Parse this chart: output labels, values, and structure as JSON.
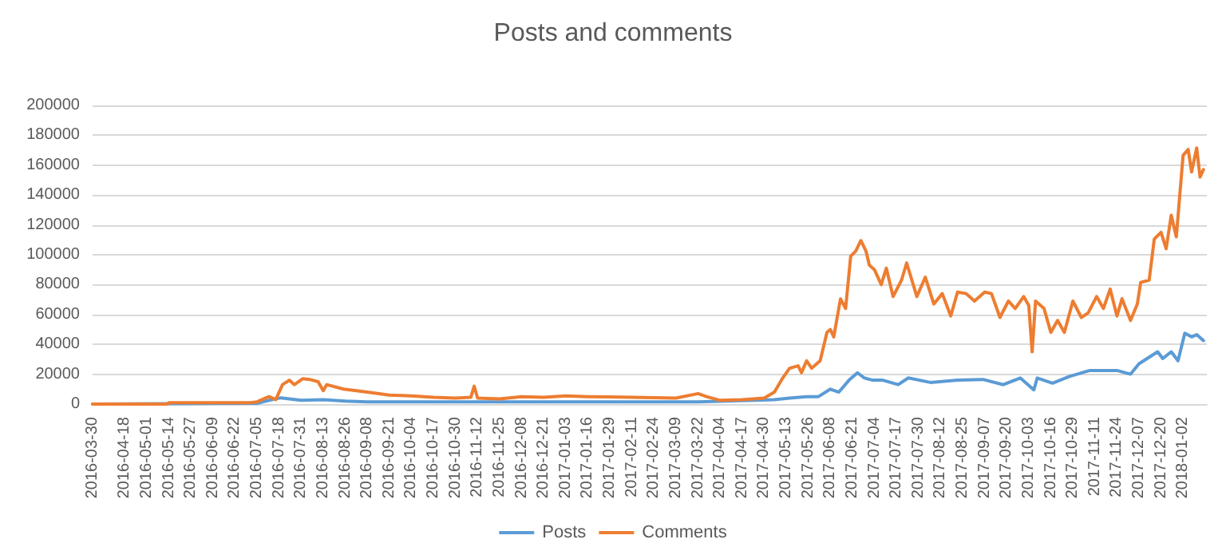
{
  "chart_data": {
    "type": "line",
    "title": "Posts and comments",
    "xlim": [
      "2016-03-30",
      "2018-01-16"
    ],
    "xticks": [
      "2016-03-30",
      "2016-04-18",
      "2016-05-01",
      "2016-05-14",
      "2016-05-27",
      "2016-06-09",
      "2016-06-22",
      "2016-07-05",
      "2016-07-18",
      "2016-07-31",
      "2016-08-13",
      "2016-08-26",
      "2016-09-08",
      "2016-09-21",
      "2016-10-04",
      "2016-10-17",
      "2016-10-30",
      "2016-11-12",
      "2016-11-25",
      "2016-12-08",
      "2016-12-21",
      "2017-01-03",
      "2017-01-16",
      "2017-01-29",
      "2017-02-11",
      "2017-02-24",
      "2017-03-09",
      "2017-03-22",
      "2017-04-04",
      "2017-04-17",
      "2017-04-30",
      "2017-05-13",
      "2017-05-26",
      "2017-06-08",
      "2017-06-21",
      "2017-07-04",
      "2017-07-17",
      "2017-07-30",
      "2017-08-12",
      "2017-08-25",
      "2017-09-07",
      "2017-09-20",
      "2017-10-03",
      "2017-10-16",
      "2017-10-29",
      "2017-11-11",
      "2017-11-24",
      "2017-12-07",
      "2017-12-20",
      "2018-01-02"
    ],
    "ylim": [
      0,
      200000
    ],
    "yticks": [
      0,
      20000,
      40000,
      60000,
      80000,
      100000,
      120000,
      140000,
      160000,
      180000,
      200000
    ],
    "grid": "y",
    "legend": "bottom",
    "marker": "none",
    "line_style": "solid",
    "series": [
      {
        "name": "Posts",
        "color": "#5b9bd5",
        "x": [
          "2016-03-30",
          "2016-07-05",
          "2016-07-12",
          "2016-07-19",
          "2016-07-31",
          "2016-08-13",
          "2016-08-26",
          "2016-09-08",
          "2016-11-12",
          "2017-01-03",
          "2017-03-22",
          "2017-05-06",
          "2017-05-15",
          "2017-05-25",
          "2017-06-01",
          "2017-06-08",
          "2017-06-13",
          "2017-06-19",
          "2017-06-24",
          "2017-06-28",
          "2017-07-03",
          "2017-07-09",
          "2017-07-18",
          "2017-07-24",
          "2017-08-06",
          "2017-08-22",
          "2017-09-06",
          "2017-09-18",
          "2017-09-28",
          "2017-10-06",
          "2017-10-08",
          "2017-10-17",
          "2017-10-27",
          "2017-11-08",
          "2017-11-24",
          "2017-12-02",
          "2017-12-07",
          "2017-12-18",
          "2017-12-21",
          "2017-12-26",
          "2017-12-30",
          "2018-01-03",
          "2018-01-07",
          "2018-01-10",
          "2018-01-14"
        ],
        "values": [
          0,
          500,
          2500,
          4200,
          2500,
          3000,
          2000,
          1500,
          1500,
          1500,
          1500,
          3000,
          4000,
          5000,
          5000,
          10000,
          8000,
          16000,
          21000,
          17500,
          16000,
          16000,
          13000,
          17500,
          14500,
          16000,
          16500,
          13000,
          17500,
          9500,
          17500,
          14000,
          18500,
          22500,
          22500,
          20000,
          27000,
          35000,
          30500,
          35000,
          29000,
          47500,
          45000,
          46500,
          42500
        ]
      },
      {
        "name": "Comments",
        "color": "#ed7d31",
        "x": [
          "2016-03-30",
          "2016-05-13",
          "2016-05-14",
          "2016-07-01",
          "2016-07-05",
          "2016-07-12",
          "2016-07-16",
          "2016-07-20",
          "2016-07-24",
          "2016-07-27",
          "2016-08-01",
          "2016-08-05",
          "2016-08-10",
          "2016-08-13",
          "2016-08-15",
          "2016-08-25",
          "2016-09-08",
          "2016-09-21",
          "2016-10-04",
          "2016-10-17",
          "2016-10-30",
          "2016-11-08",
          "2016-11-10",
          "2016-11-12",
          "2016-11-25",
          "2016-12-08",
          "2016-12-21",
          "2017-01-03",
          "2017-01-16",
          "2017-02-11",
          "2017-03-09",
          "2017-03-22",
          "2017-03-27",
          "2017-04-04",
          "2017-04-17",
          "2017-04-30",
          "2017-05-06",
          "2017-05-11",
          "2017-05-15",
          "2017-05-20",
          "2017-05-22",
          "2017-05-25",
          "2017-05-28",
          "2017-06-02",
          "2017-06-06",
          "2017-06-08",
          "2017-06-10",
          "2017-06-14",
          "2017-06-17",
          "2017-06-20",
          "2017-06-23",
          "2017-06-26",
          "2017-06-29",
          "2017-07-01",
          "2017-07-04",
          "2017-07-08",
          "2017-07-11",
          "2017-07-15",
          "2017-07-20",
          "2017-07-23",
          "2017-07-29",
          "2017-08-03",
          "2017-08-08",
          "2017-08-13",
          "2017-08-18",
          "2017-08-22",
          "2017-08-27",
          "2017-09-01",
          "2017-09-07",
          "2017-09-11",
          "2017-09-16",
          "2017-09-21",
          "2017-09-25",
          "2017-09-30",
          "2017-10-03",
          "2017-10-05",
          "2017-10-07",
          "2017-10-12",
          "2017-10-16",
          "2017-10-20",
          "2017-10-24",
          "2017-10-29",
          "2017-11-03",
          "2017-11-07",
          "2017-11-12",
          "2017-11-16",
          "2017-11-20",
          "2017-11-24",
          "2017-11-27",
          "2017-12-02",
          "2017-12-06",
          "2017-12-08",
          "2017-12-13",
          "2017-12-16",
          "2017-12-20",
          "2017-12-23",
          "2017-12-26",
          "2017-12-29",
          "2018-01-02",
          "2018-01-05",
          "2018-01-07",
          "2018-01-10",
          "2018-01-12",
          "2018-01-14"
        ],
        "values": [
          0,
          0,
          1000,
          1000,
          1500,
          5000,
          3000,
          13000,
          16000,
          13000,
          17000,
          16500,
          15000,
          9000,
          13000,
          10000,
          8000,
          6000,
          5500,
          4500,
          4000,
          4500,
          12000,
          4000,
          3500,
          5000,
          4500,
          5500,
          5000,
          4500,
          4000,
          7000,
          5000,
          2500,
          3000,
          4000,
          8000,
          17600,
          24000,
          25600,
          21000,
          29000,
          24000,
          29000,
          48000,
          50000,
          45000,
          70500,
          64000,
          99000,
          102500,
          109500,
          102500,
          93000,
          90000,
          80000,
          91000,
          72000,
          83000,
          94500,
          72000,
          85000,
          67000,
          74000,
          59000,
          75000,
          74000,
          69000,
          75000,
          74000,
          58000,
          69000,
          64000,
          72000,
          66000,
          35000,
          69000,
          64000,
          48000,
          56000,
          48000,
          69000,
          58000,
          61000,
          72000,
          64000,
          77000,
          59000,
          70500,
          56000,
          67000,
          81500,
          83000,
          110500,
          115000,
          104000,
          126500,
          112000,
          166500,
          170500,
          155500,
          171500,
          152000,
          157000
        ]
      }
    ]
  }
}
